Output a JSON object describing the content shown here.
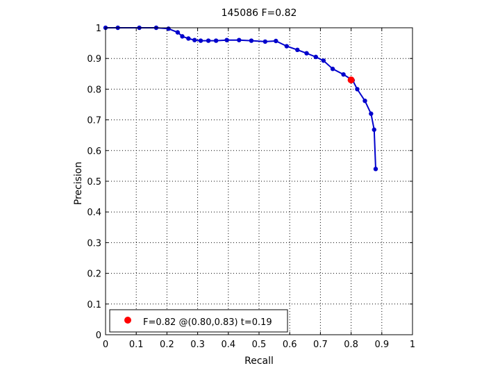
{
  "chart_data": {
    "type": "line",
    "title": "145086 F=0.82",
    "xlabel": "Recall",
    "ylabel": "Precision",
    "xlim": [
      0,
      1
    ],
    "ylim": [
      0,
      1
    ],
    "xticks": [
      "0",
      "0.1",
      "0.2",
      "0.3",
      "0.4",
      "0.5",
      "0.6",
      "0.7",
      "0.8",
      "0.9",
      "1"
    ],
    "yticks": [
      "0",
      "0.1",
      "0.2",
      "0.3",
      "0.4",
      "0.5",
      "0.6",
      "0.7",
      "0.8",
      "0.9",
      "1"
    ],
    "grid": true,
    "legend_position": "bottom-left",
    "series": [
      {
        "color": "#0000cc",
        "x": [
          0.0,
          0.04,
          0.11,
          0.165,
          0.205,
          0.235,
          0.25,
          0.27,
          0.29,
          0.31,
          0.335,
          0.36,
          0.395,
          0.435,
          0.475,
          0.52,
          0.555,
          0.59,
          0.625,
          0.655,
          0.685,
          0.71,
          0.74,
          0.775,
          0.805,
          0.82,
          0.845,
          0.865,
          0.875,
          0.88
        ],
        "y": [
          1.0,
          1.0,
          1.0,
          1.0,
          0.997,
          0.985,
          0.972,
          0.965,
          0.96,
          0.958,
          0.958,
          0.958,
          0.96,
          0.96,
          0.958,
          0.955,
          0.957,
          0.94,
          0.928,
          0.917,
          0.905,
          0.893,
          0.866,
          0.848,
          0.829,
          0.8,
          0.762,
          0.72,
          0.668,
          0.54
        ]
      }
    ],
    "highlight": {
      "x": 0.8,
      "y": 0.83,
      "color": "#ff0000"
    },
    "legend": {
      "label": "F=0.82 @(0.80,0.83) t=0.19"
    }
  }
}
